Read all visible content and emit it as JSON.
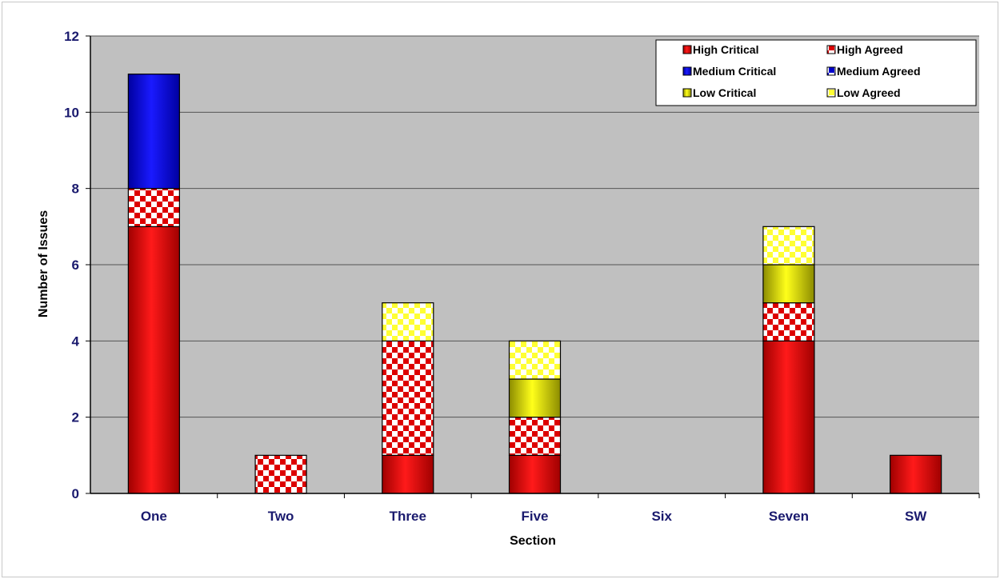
{
  "chart_data": {
    "type": "bar",
    "stacked": true,
    "categories": [
      "One",
      "Two",
      "Three",
      "Five",
      "Six",
      "Seven",
      "SW"
    ],
    "series": [
      {
        "name": "High Critical",
        "color": "#cc0000",
        "pattern": "solid",
        "values": [
          7,
          0,
          1,
          1,
          0,
          4,
          1
        ]
      },
      {
        "name": "High Agreed",
        "color": "#cc0000",
        "pattern": "checker",
        "values": [
          1,
          1,
          3,
          1,
          0,
          1,
          0
        ]
      },
      {
        "name": "Medium Critical",
        "color": "#0000cc",
        "pattern": "solid",
        "values": [
          3,
          0,
          0,
          0,
          0,
          0,
          0
        ]
      },
      {
        "name": "Medium Agreed",
        "color": "#0000cc",
        "pattern": "checker",
        "values": [
          0,
          0,
          0,
          0,
          0,
          0,
          0
        ]
      },
      {
        "name": "Low Critical",
        "color": "#cccc00",
        "pattern": "solid",
        "values": [
          0,
          0,
          0,
          1,
          0,
          1,
          0
        ]
      },
      {
        "name": "Low Agreed",
        "color": "#ffff44",
        "pattern": "checker",
        "values": [
          0,
          0,
          1,
          1,
          0,
          1,
          0
        ]
      }
    ],
    "title": "",
    "xlabel": "Section",
    "ylabel": "Number of Issues",
    "ylim": [
      0,
      12
    ],
    "yticks": [
      0,
      2,
      4,
      6,
      8,
      10,
      12
    ],
    "grid": true,
    "legend_position": "top-right",
    "colors": {
      "plot_background": "#c0c0c0",
      "gridline": "#808080",
      "tick_label": "#1a1a6e"
    }
  }
}
